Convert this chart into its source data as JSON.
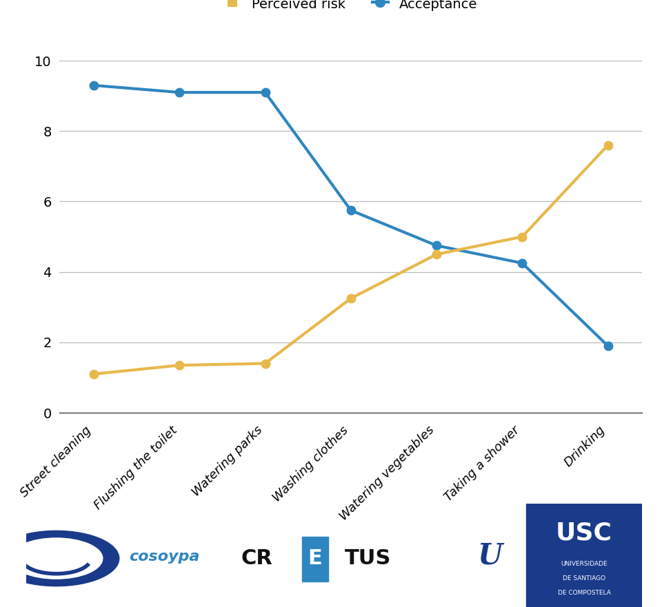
{
  "categories": [
    "Street cleaning",
    "Flushing the toilet",
    "Watering parks",
    "Washing clothes",
    "Watering vegetables",
    "Taking a shower",
    "Drinking"
  ],
  "perceived_risk": [
    1.1,
    1.35,
    1.4,
    3.25,
    4.5,
    5.0,
    7.6
  ],
  "acceptance": [
    9.3,
    9.1,
    9.1,
    5.75,
    4.75,
    4.25,
    1.9
  ],
  "risk_color": "#E8B84B",
  "acceptance_color": "#2E86C1",
  "risk_label": "Perceived risk",
  "acceptance_label": "Acceptance",
  "ylim": [
    0,
    10
  ],
  "yticks": [
    0,
    2,
    4,
    6,
    8,
    10
  ],
  "background_color": "#ffffff",
  "grid_color": "#bbbbbb",
  "linewidth": 3.0,
  "markersize": 9,
  "tick_fontsize": 14,
  "label_fontsize": 13,
  "legend_fontsize": 14
}
